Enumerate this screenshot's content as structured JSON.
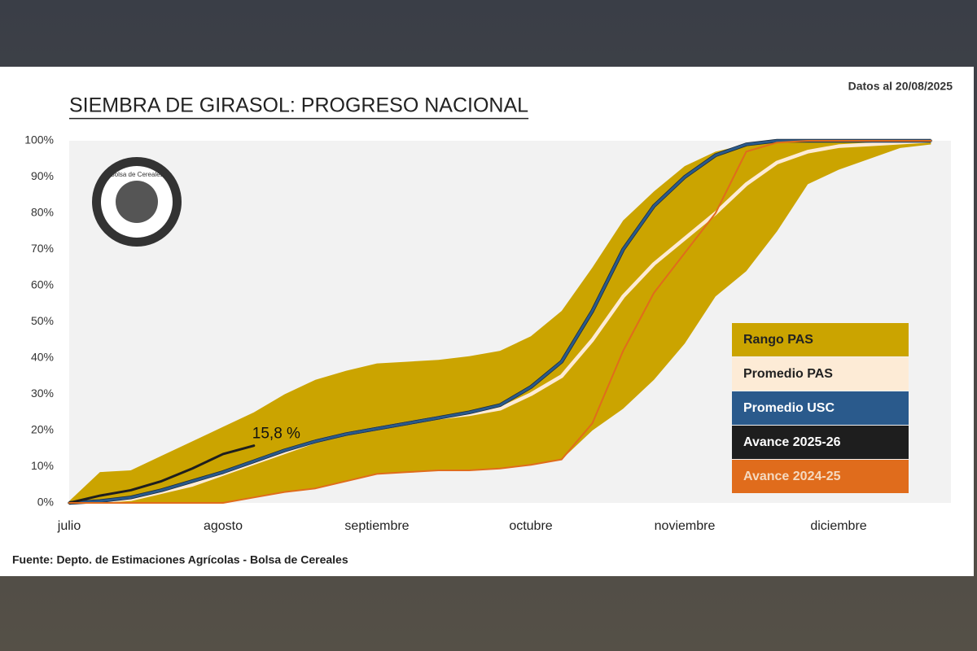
{
  "chart_data": {
    "type": "line",
    "title": "SIEMBRA DE GIRASOL: PROGRESO NACIONAL",
    "date_note": "Datos al 20/08/2025",
    "source": "Fuente: Depto. de Estimaciones Agrícolas - Bolsa de Cereales",
    "logo_text": "Bolsa de Cereales",
    "categories": [
      "julio",
      null,
      null,
      null,
      null,
      "agosto",
      null,
      null,
      null,
      null,
      "septiembre",
      null,
      null,
      null,
      null,
      "octubre",
      null,
      null,
      null,
      null,
      "noviembre",
      null,
      null,
      null,
      null,
      "diciembre",
      null,
      null,
      null
    ],
    "ylim": [
      0,
      100
    ],
    "yticks": [
      {
        "value": 0,
        "label": "0%"
      },
      {
        "value": 10,
        "label": "10%"
      },
      {
        "value": 20,
        "label": "20%"
      },
      {
        "value": 30,
        "label": "30%"
      },
      {
        "value": 40,
        "label": "40%"
      },
      {
        "value": 50,
        "label": "50%"
      },
      {
        "value": 60,
        "label": "60%"
      },
      {
        "value": 70,
        "label": "70%"
      },
      {
        "value": 80,
        "label": "80%"
      },
      {
        "value": 90,
        "label": "90%"
      },
      {
        "value": 100,
        "label": "100%"
      }
    ],
    "band": {
      "name": "Rango PAS",
      "color": "#cba400",
      "upper": [
        0.5,
        8.5,
        9,
        13,
        17,
        21,
        25,
        30,
        34,
        36.5,
        38.5,
        39,
        39.5,
        40.5,
        42,
        46,
        53,
        65,
        78,
        86,
        93,
        97,
        99,
        100,
        100,
        100,
        100,
        100,
        100
      ],
      "lower": [
        0,
        0,
        0,
        0,
        0,
        0,
        1.5,
        3,
        4,
        6,
        8,
        8.5,
        9,
        9,
        9.5,
        10.5,
        12,
        20,
        26,
        34,
        44,
        57,
        64,
        75,
        88,
        92,
        95,
        98,
        99
      ]
    },
    "series": [
      {
        "name": "Promedio PAS",
        "color": "#fdebd6",
        "values": [
          0,
          0.5,
          1,
          3,
          5,
          8,
          11,
          14,
          17,
          19,
          20.5,
          22,
          23.5,
          24.5,
          26,
          30,
          35,
          45,
          57,
          66,
          73,
          80,
          88,
          94,
          97,
          98.5,
          99,
          99.5,
          100
        ]
      },
      {
        "name": "Promedio USC",
        "color": "#2a5a8c",
        "values": [
          0,
          0.5,
          1.5,
          3.5,
          6,
          8.5,
          11.5,
          14.5,
          17,
          19,
          20.5,
          22,
          23.5,
          25,
          27,
          32,
          39,
          53,
          70,
          82,
          90,
          96,
          99,
          100,
          100,
          100,
          100,
          100,
          100
        ]
      },
      {
        "name": "Avance 2025-26",
        "color": "#1e1e1e",
        "values": [
          0,
          2,
          3.5,
          6,
          9.5,
          13.5,
          15.8,
          null,
          null,
          null,
          null,
          null,
          null,
          null,
          null,
          null,
          null,
          null,
          null,
          null,
          null,
          null,
          null,
          null,
          null,
          null,
          null,
          null,
          null
        ],
        "value_labels": [
          null,
          null,
          null,
          null,
          null,
          null,
          "15,8 %",
          null,
          null,
          null,
          null,
          null,
          null,
          null,
          null,
          null,
          null,
          null,
          null,
          null,
          null,
          null,
          null,
          null,
          null,
          null,
          null,
          null,
          null
        ]
      },
      {
        "name": "Avance 2024-25",
        "color": "#e06c1c",
        "values": [
          0,
          0,
          0,
          0,
          0,
          0,
          1.5,
          3,
          4,
          6,
          8,
          8.5,
          9,
          9,
          9.5,
          10.5,
          12,
          22,
          42,
          58,
          69,
          80,
          97,
          99.5,
          100,
          100,
          100,
          100,
          100
        ]
      }
    ]
  }
}
